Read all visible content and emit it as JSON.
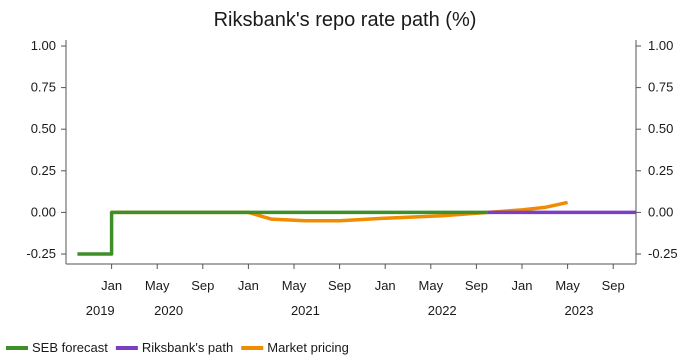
{
  "chart_data": {
    "type": "line",
    "title": "Riksbank's repo rate path (%)",
    "xlabel": "",
    "ylabel": "",
    "ylim": [
      -0.3,
      1.05
    ],
    "y_ticks": [
      "1.00",
      "0.75",
      "0.50",
      "0.25",
      "0.00",
      "-0.25"
    ],
    "y_tick_values": [
      1.0,
      0.75,
      0.5,
      0.25,
      0.0,
      -0.25
    ],
    "x_axis": {
      "start": "2019-09",
      "end": "2023-11",
      "month_ticks": [
        {
          "date": "2020-01",
          "label": "Jan"
        },
        {
          "date": "2020-05",
          "label": "May"
        },
        {
          "date": "2020-09",
          "label": "Sep"
        },
        {
          "date": "2021-01",
          "label": "Jan"
        },
        {
          "date": "2021-05",
          "label": "May"
        },
        {
          "date": "2021-09",
          "label": "Sep"
        },
        {
          "date": "2022-01",
          "label": "Jan"
        },
        {
          "date": "2022-05",
          "label": "May"
        },
        {
          "date": "2022-09",
          "label": "Sep"
        },
        {
          "date": "2023-01",
          "label": "Jan"
        },
        {
          "date": "2023-05",
          "label": "May"
        },
        {
          "date": "2023-09",
          "label": "Sep"
        }
      ],
      "year_labels": [
        {
          "date": "2019-12",
          "label": "2019"
        },
        {
          "date": "2020-06",
          "label": "2020"
        },
        {
          "date": "2021-06",
          "label": "2021"
        },
        {
          "date": "2022-06",
          "label": "2022"
        },
        {
          "date": "2023-06",
          "label": "2023"
        }
      ]
    },
    "series": [
      {
        "name": "SEB forecast",
        "color": "#3f8f28",
        "points": [
          {
            "x": "2019-10",
            "y": -0.25
          },
          {
            "x": "2020-01",
            "y": -0.25
          },
          {
            "x": "2020-01",
            "y": 0.0
          },
          {
            "x": "2022-10",
            "y": 0.0
          }
        ]
      },
      {
        "name": "Riksbank's path",
        "color": "#7b3fc4",
        "points": [
          {
            "x": "2022-10",
            "y": 0.0
          },
          {
            "x": "2023-11",
            "y": 0.0
          }
        ]
      },
      {
        "name": "Market pricing",
        "color": "#f08c00",
        "points": [
          {
            "x": "2020-01",
            "y": 0.0
          },
          {
            "x": "2021-01",
            "y": 0.0
          },
          {
            "x": "2021-03",
            "y": -0.04
          },
          {
            "x": "2021-06",
            "y": -0.05
          },
          {
            "x": "2021-09",
            "y": -0.05
          },
          {
            "x": "2022-01",
            "y": -0.035
          },
          {
            "x": "2022-06",
            "y": -0.02
          },
          {
            "x": "2022-10",
            "y": 0.0
          },
          {
            "x": "2023-01",
            "y": 0.015
          },
          {
            "x": "2023-03",
            "y": 0.03
          },
          {
            "x": "2023-05",
            "y": 0.06
          }
        ]
      }
    ],
    "legend_position": "bottom-left"
  }
}
